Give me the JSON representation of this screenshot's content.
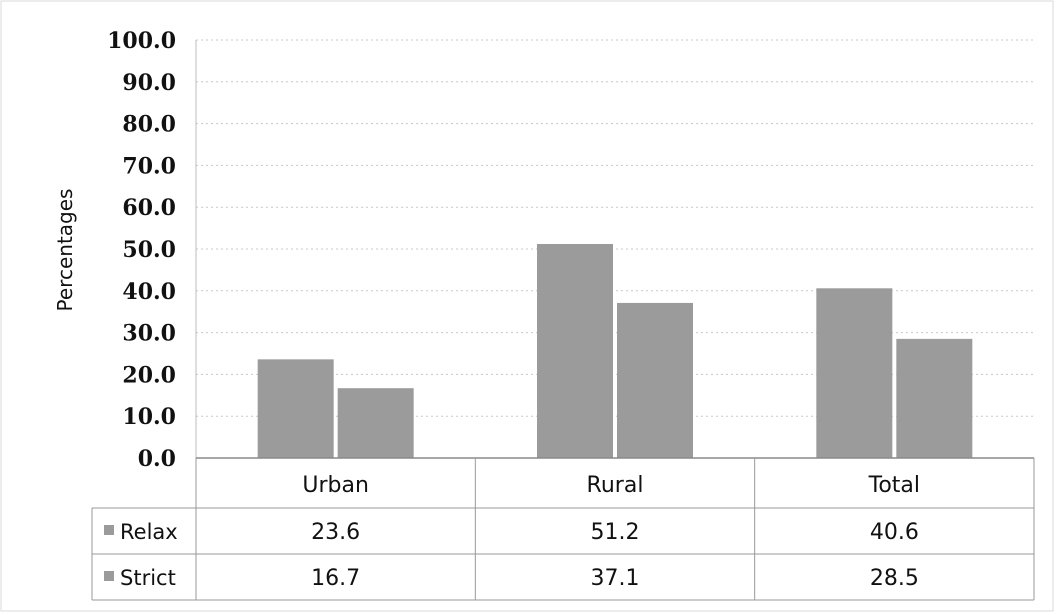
{
  "chart_data": {
    "type": "bar",
    "title": "",
    "xlabel": "",
    "ylabel": "Percentages",
    "ylim": [
      0,
      100
    ],
    "yticks": [
      "0.0",
      "10.0",
      "20.0",
      "30.0",
      "40.0",
      "50.0",
      "60.0",
      "70.0",
      "80.0",
      "90.0",
      "100.0"
    ],
    "categories": [
      "Urban",
      "Rural",
      "Total"
    ],
    "series": [
      {
        "name": "Relax",
        "values": [
          23.6,
          51.2,
          40.6
        ],
        "labels": [
          "23.6",
          "51.2",
          "40.6"
        ],
        "color": "#9b9b9b"
      },
      {
        "name": "Strict",
        "values": [
          16.7,
          37.1,
          28.5
        ],
        "labels": [
          "16.7",
          "37.1",
          "28.5"
        ],
        "color": "#9b9b9b"
      }
    ],
    "grid": true,
    "legend": "data-table"
  }
}
